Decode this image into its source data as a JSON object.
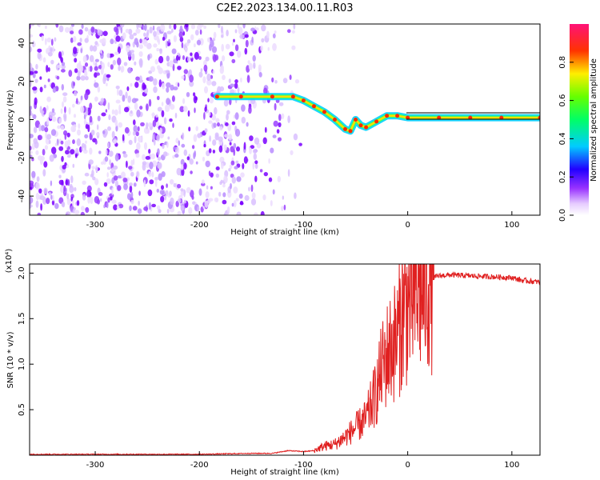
{
  "title": "C2E2.2023.134.00.11.R03",
  "chart_data": [
    {
      "type": "heatmap",
      "xlabel": "Height of straight line (km)",
      "ylabel": "Frequency (Hz)",
      "xlim": [
        -363,
        127
      ],
      "ylim": [
        -50,
        50
      ],
      "x_ticks": [
        -300,
        -200,
        -100,
        0,
        100
      ],
      "y_ticks": [
        -40,
        -20,
        0,
        20,
        40
      ],
      "colorbar": {
        "label": "Normalized spectral amplitude",
        "range": [
          0,
          1
        ],
        "ticks": [
          "0.0",
          "0.2",
          "0.4",
          "0.6",
          "0.8"
        ]
      },
      "signal_track": {
        "x": [
          -183,
          -160,
          -130,
          -110,
          -100,
          -90,
          -80,
          -70,
          -60,
          -55,
          -50,
          -45,
          -40,
          -30,
          -20,
          -10,
          0,
          30,
          60,
          90,
          127
        ],
        "freq": [
          12,
          12,
          12,
          12,
          10,
          7,
          4,
          0,
          -5,
          -6,
          0,
          -3,
          -4,
          -1,
          2,
          2,
          1,
          1,
          1,
          1,
          1
        ]
      },
      "noise_region_x": [
        -363,
        -100
      ],
      "grid": false
    },
    {
      "type": "line",
      "xlabel": "Height of straight line (km)",
      "ylabel": "SNR (10 * v/v)",
      "y_multiplier": "(x10⁴)",
      "xlim": [
        -363,
        127
      ],
      "ylim": [
        0,
        2.1
      ],
      "x_ticks": [
        -300,
        -200,
        -100,
        0,
        100
      ],
      "y_ticks": [
        "0.5",
        "1.0",
        "1.5",
        "2.0"
      ],
      "color": "#e02020",
      "series": [
        {
          "x": [
            -363,
            -300,
            -200,
            -150,
            -130,
            -115,
            -100,
            -90,
            -80,
            -70,
            -60,
            -50,
            -40,
            -30,
            -25,
            -20,
            -15,
            -10,
            -5,
            0,
            10,
            20,
            30,
            40,
            60,
            80,
            100,
            110,
            127
          ],
          "y": [
            0.01,
            0.01,
            0.01,
            0.02,
            0.02,
            0.05,
            0.04,
            0.05,
            0.1,
            0.12,
            0.2,
            0.3,
            0.4,
            0.7,
            0.95,
            1.1,
            1.2,
            1.3,
            1.55,
            1.65,
            1.8,
            1.93,
            1.97,
            1.98,
            1.97,
            1.96,
            1.95,
            1.92,
            1.9
          ]
        }
      ],
      "grid": false
    }
  ]
}
